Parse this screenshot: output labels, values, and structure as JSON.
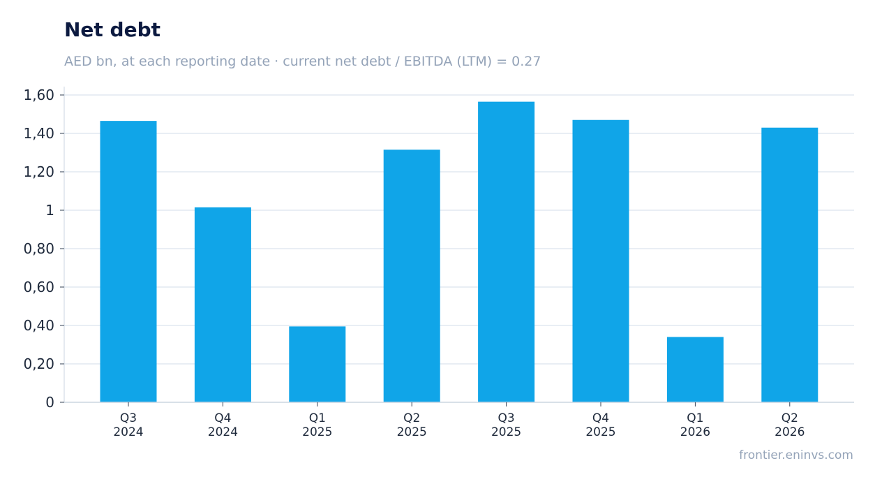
{
  "title": "Net debt",
  "subtitle": "AED bn, at each reporting date · current net debt / EBITDA (LTM) = 0.27",
  "footer": "frontier.eninvs.com",
  "colors": {
    "bar": "#10a5e8",
    "title": "#0c1a40",
    "muted": "#94a3b8",
    "grid": "#e2e8f0",
    "axis": "#cbd5e1"
  },
  "chart_data": {
    "type": "bar",
    "categories": [
      [
        "Q3",
        "2024"
      ],
      [
        "Q4",
        "2024"
      ],
      [
        "Q1",
        "2025"
      ],
      [
        "Q2",
        "2025"
      ],
      [
        "Q3",
        "2025"
      ],
      [
        "Q4",
        "2025"
      ],
      [
        "Q1",
        "2026"
      ],
      [
        "Q2",
        "2026"
      ]
    ],
    "values": [
      1.465,
      1.015,
      0.395,
      1.315,
      1.565,
      1.47,
      0.34,
      1.43
    ],
    "ylim": [
      0,
      1.6
    ],
    "yticks": [
      {
        "value": 0,
        "label": "0"
      },
      {
        "value": 0.2,
        "label": "0,20"
      },
      {
        "value": 0.4,
        "label": "0,40"
      },
      {
        "value": 0.6,
        "label": "0,60"
      },
      {
        "value": 0.8,
        "label": "0,80"
      },
      {
        "value": 1.0,
        "label": "1"
      },
      {
        "value": 1.2,
        "label": "1,20"
      },
      {
        "value": 1.4,
        "label": "1,40"
      },
      {
        "value": 1.6,
        "label": "1,60"
      }
    ],
    "grid": true
  }
}
